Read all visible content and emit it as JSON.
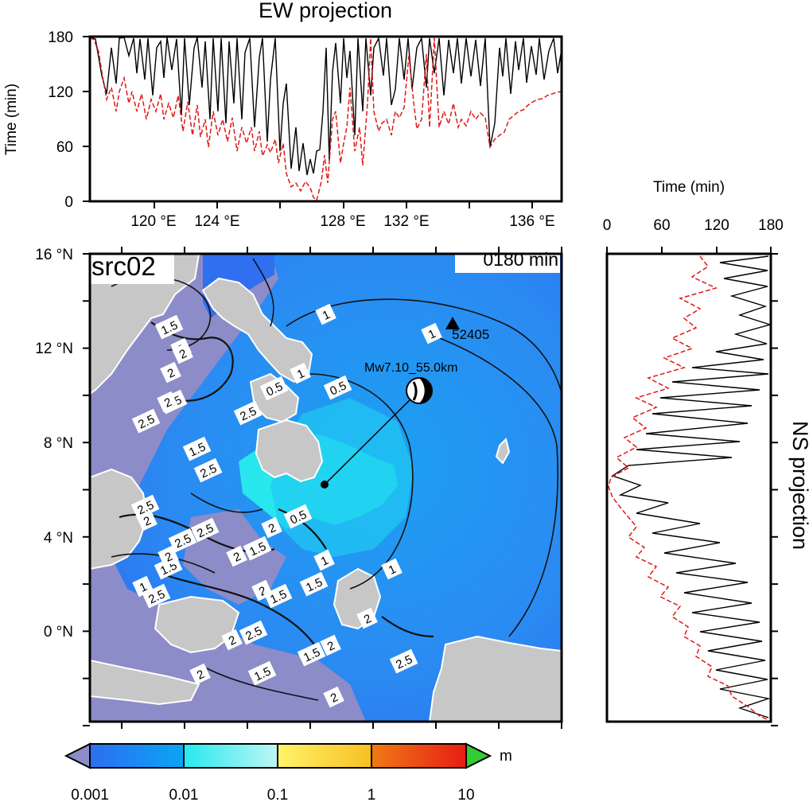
{
  "panels": {
    "ew": {
      "title": "EW projection",
      "y_label": "Time (min)",
      "y_ticks": [
        "0",
        "60",
        "120",
        "180"
      ],
      "x_ticks": [
        "120 °E",
        "124 °E",
        "128 °E",
        "132 °E",
        "136 °E"
      ]
    },
    "ns": {
      "title": "NS projection",
      "x_label": "Time (min)",
      "x_ticks": [
        "0",
        "60",
        "120",
        "180"
      ]
    },
    "map": {
      "source_label": "src02",
      "time_label": "0180 min",
      "lat_ticks": [
        "16 °N",
        "12 °N",
        "8 °N",
        "4 °N",
        "0 °N"
      ],
      "station": {
        "id": "52405"
      },
      "event_label": "Mw7.10_55.0km",
      "contour_labels": [
        "1",
        "1",
        "0.5",
        "0.5",
        "1",
        "1",
        "1.5",
        "1.5",
        "1.5",
        "1.5",
        "1.5",
        "2",
        "2",
        "2",
        "2",
        "2",
        "2",
        "2",
        "2",
        "2.5",
        "2.5",
        "2.5",
        "2.5",
        "2.5",
        "2.5",
        "2.5",
        "1.5",
        "1",
        "1.5",
        "0.5",
        "1",
        "2",
        "2",
        "1.5",
        "2",
        "2.5",
        "1.5",
        "2",
        "2",
        "2.5",
        "2"
      ]
    }
  },
  "colorbar": {
    "tick_labels": [
      "0.001",
      "0.01",
      "0.1",
      "1",
      "10"
    ],
    "unit": "m",
    "colors": [
      "#2c6ef0",
      "#0aa6f5",
      "#27e8f0",
      "#bdf7f4",
      "#fff36a",
      "#f7c021",
      "#f07a14",
      "#e81c14",
      "#33cc33"
    ]
  },
  "colors": {
    "land": "#c7c7c7",
    "deep_sea": "#8c8cc8",
    "ocean_blue": "#2f84f3",
    "cyan_patch": "#29f0ec",
    "obs_line": "#000000",
    "sim_line": "#e01818"
  }
}
